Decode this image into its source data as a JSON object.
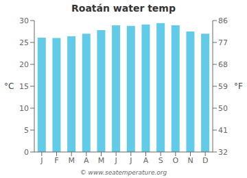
{
  "chart_data": {
    "type": "bar",
    "title": "Roatán water temp",
    "categories": [
      "J",
      "F",
      "M",
      "A",
      "M",
      "J",
      "J",
      "A",
      "S",
      "O",
      "N",
      "D"
    ],
    "values": [
      26.1,
      26.0,
      26.4,
      27.0,
      27.8,
      28.9,
      28.8,
      29.1,
      29.4,
      28.9,
      27.5,
      27.0
    ],
    "color": "#62cce8",
    "ylim": [
      0,
      30
    ],
    "yticks": [
      0,
      5,
      10,
      15,
      20,
      25,
      30
    ],
    "y2lim": [
      32,
      86
    ],
    "y2ticks": [
      32,
      41,
      50,
      59,
      68,
      77,
      86
    ],
    "ylabel": "°C",
    "y2label": "°F",
    "grid": false,
    "annotations": [
      "© www.seatemperature.org"
    ]
  }
}
